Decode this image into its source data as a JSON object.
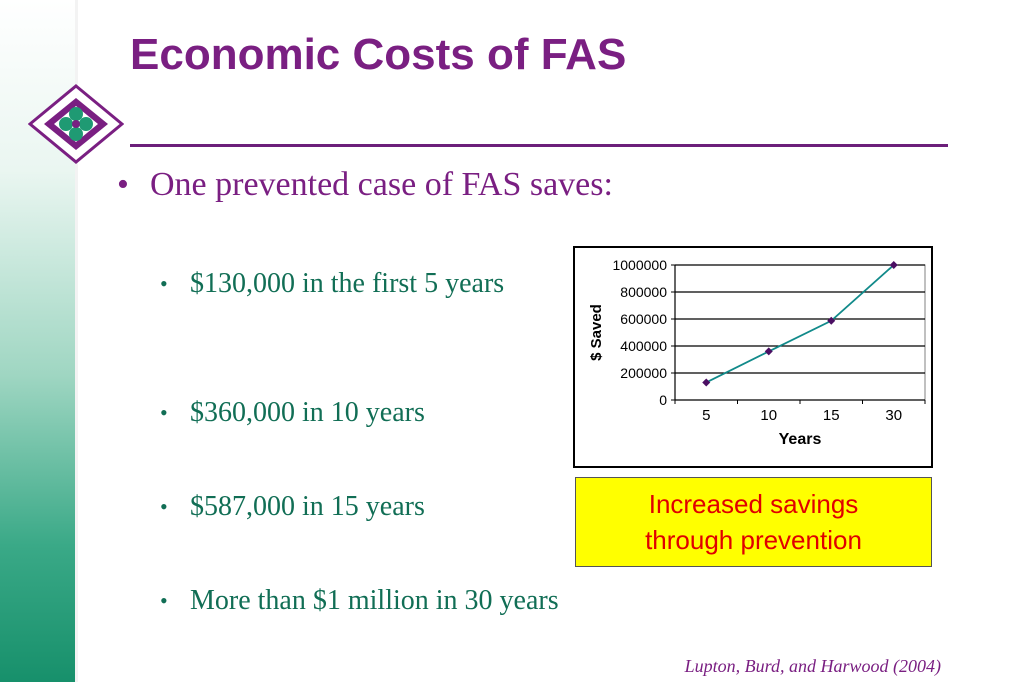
{
  "slide": {
    "title": "Economic Costs of FAS",
    "main_bullet": "One prevented case of FAS saves:",
    "bullets": [
      "$130,000 in the first 5 years",
      "$360,000 in 10 years",
      "$587,000 in 15 years",
      "More than $1 million in 30 years"
    ],
    "callout": "Increased savings through prevention",
    "citation": "Lupton, Burd, and Harwood (2004)",
    "bullet_symbol": "•"
  },
  "colors": {
    "title": "#7a1f82",
    "bullet_text": "#116e55",
    "series": "#118a8a",
    "marker": "#4b0f63",
    "callout_bg": "#ffff00",
    "callout_text": "#e00000"
  },
  "chart_data": {
    "type": "line",
    "categories": [
      "5",
      "10",
      "15",
      "30"
    ],
    "series": [
      {
        "values": [
          130000,
          360000,
          587000,
          1000000
        ]
      }
    ],
    "xlabel": "Years",
    "ylabel": "$ Saved",
    "ylim": [
      0,
      1000000
    ],
    "yticks": [
      "0",
      "200000",
      "400000",
      "600000",
      "800000",
      "1000000"
    ],
    "grid": true,
    "legend": "none"
  }
}
